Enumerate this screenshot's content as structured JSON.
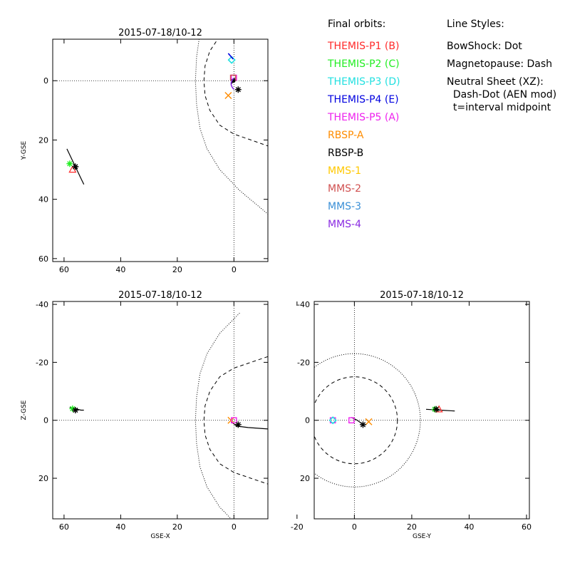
{
  "colors": {
    "THEMIS-P1": "#ff2a2a",
    "THEMIS-P2": "#22ee22",
    "THEMIS-P3": "#22e0e0",
    "THEMIS-P4": "#0000e0",
    "THEMIS-P5": "#ee22ee",
    "RBSP-A": "#ff8c00",
    "RBSP-B": "#000000",
    "MMS-1": "#ffc800",
    "MMS-2": "#d05050",
    "MMS-3": "#3a8fd6",
    "MMS-4": "#8a2be2"
  },
  "legend": {
    "title": "Final orbits:",
    "items": [
      {
        "label": "THEMIS-P1 (B)",
        "key": "THEMIS-P1"
      },
      {
        "label": "THEMIS-P2 (C)",
        "key": "THEMIS-P2"
      },
      {
        "label": "THEMIS-P3 (D)",
        "key": "THEMIS-P3"
      },
      {
        "label": "THEMIS-P4 (E)",
        "key": "THEMIS-P4"
      },
      {
        "label": "THEMIS-P5 (A)",
        "key": "THEMIS-P5"
      },
      {
        "label": "RBSP-A",
        "key": "RBSP-A"
      },
      {
        "label": "RBSP-B",
        "key": "RBSP-B"
      },
      {
        "label": "MMS-1",
        "key": "MMS-1"
      },
      {
        "label": "MMS-2",
        "key": "MMS-2"
      },
      {
        "label": "MMS-3",
        "key": "MMS-3"
      },
      {
        "label": "MMS-4",
        "key": "MMS-4"
      }
    ]
  },
  "line_styles": {
    "title": "Line Styles:",
    "lines": [
      "BowShock: Dot",
      "Magnetopause: Dash",
      "Neutral Sheet (XZ):",
      "  Dash-Dot (AEN mod)",
      "  t=interval midpoint"
    ]
  },
  "chart_data": [
    {
      "type": "scatter",
      "panel": "XY",
      "title": "2015-07-18/10-12",
      "xlabel": "",
      "ylabel": "Y-GSE",
      "xlim": [
        64,
        -12
      ],
      "ylim": [
        -14,
        61
      ],
      "xticks": [
        60,
        40,
        20,
        0
      ],
      "yticks": [
        0,
        20,
        40,
        60
      ],
      "zero_lines": true,
      "bow_shock": [
        [
          13.6,
          0
        ],
        [
          13.2,
          8
        ],
        [
          12,
          16
        ],
        [
          9.5,
          23
        ],
        [
          5,
          30
        ],
        [
          -2,
          37
        ],
        [
          -12,
          45
        ]
      ],
      "bow_shock_neg": [
        [
          13.2,
          -8
        ],
        [
          12,
          -16
        ],
        [
          9.5,
          -23
        ]
      ],
      "magnetopause": [
        [
          10.6,
          0
        ],
        [
          10.2,
          5
        ],
        [
          8.5,
          10
        ],
        [
          5,
          15
        ],
        [
          0,
          18
        ],
        [
          -6,
          20
        ],
        [
          -12,
          22
        ]
      ],
      "magnetopause_neg": [
        [
          10.2,
          -5
        ],
        [
          8.5,
          -10
        ],
        [
          5,
          -15
        ]
      ],
      "tracks": [
        {
          "key": "THEMIS-P2",
          "points": [
            [
              59,
              23
            ],
            [
              56,
              29
            ],
            [
              54,
              33
            ],
            [
              53,
              35
            ]
          ]
        },
        {
          "key": "RBSP-B",
          "points": [
            [
              0.8,
              1
            ],
            [
              0.2,
              0
            ],
            [
              -0.3,
              -1
            ]
          ]
        }
      ],
      "markers": [
        {
          "key": "THEMIS-P1",
          "x": 57,
          "y": 30,
          "symbol": "triangle"
        },
        {
          "key": "THEMIS-P2",
          "x": 58,
          "y": 28,
          "symbol": "star"
        },
        {
          "key": "RBSP-B",
          "x": 56,
          "y": 29,
          "symbol": "star"
        },
        {
          "key": "THEMIS-P3",
          "x": 0.8,
          "y": -7,
          "symbol": "diamond"
        },
        {
          "key": "THEMIS-P4",
          "x": 1,
          "y": -8,
          "symbol": "line"
        },
        {
          "key": "THEMIS-P5",
          "x": 0,
          "y": -1,
          "symbol": "square"
        },
        {
          "key": "MMS-2",
          "x": 0.3,
          "y": -1,
          "symbol": "square"
        },
        {
          "key": "RBSP-A",
          "x": 2,
          "y": 5,
          "symbol": "cross"
        },
        {
          "key": "RBSP-B",
          "x": -1.5,
          "y": 3,
          "symbol": "star"
        },
        {
          "key": "RBSP-B",
          "x": 0.2,
          "y": 0,
          "symbol": "dot"
        },
        {
          "key": "MMS-4",
          "x": 0.5,
          "y": 1,
          "symbol": "arc"
        }
      ]
    },
    {
      "type": "scatter",
      "panel": "XZ",
      "title": "2015-07-18/10-12",
      "xlabel": "GSE-X",
      "ylabel": "Z-GSE",
      "xlim": [
        64,
        -12
      ],
      "ylim": [
        -41,
        34
      ],
      "xticks": [
        60,
        40,
        20,
        0
      ],
      "yticks": [
        -40,
        -20,
        0,
        20
      ],
      "zero_lines": true,
      "bow_shock": [
        [
          13.6,
          0
        ],
        [
          13.2,
          8
        ],
        [
          12,
          16
        ],
        [
          9.5,
          23
        ],
        [
          5,
          30
        ],
        [
          -2,
          37
        ]
      ],
      "bow_shock_neg": [
        [
          13.2,
          -8
        ],
        [
          12,
          -16
        ],
        [
          9.5,
          -23
        ],
        [
          5,
          -30
        ],
        [
          -2,
          -37
        ]
      ],
      "magnetopause": [
        [
          10.6,
          0
        ],
        [
          10.2,
          5
        ],
        [
          8.5,
          10
        ],
        [
          5,
          15
        ],
        [
          0,
          18
        ],
        [
          -6,
          20
        ],
        [
          -12,
          22
        ]
      ],
      "magnetopause_neg": [
        [
          10.2,
          -5
        ],
        [
          8.5,
          -10
        ],
        [
          5,
          -15
        ],
        [
          0,
          -18
        ],
        [
          -6,
          -20
        ],
        [
          -12,
          -22
        ]
      ],
      "tracks": [
        {
          "key": "THEMIS-P2",
          "points": [
            [
              58,
              -4.5
            ],
            [
              56,
              -4
            ],
            [
              54,
              -3.5
            ],
            [
              53,
              -3.5
            ]
          ]
        },
        {
          "key": "RBSP-B",
          "points": [
            [
              1,
              0.5
            ],
            [
              -1,
              2
            ],
            [
              -5,
              2.5
            ],
            [
              -12,
              3
            ]
          ]
        }
      ],
      "markers": [
        {
          "key": "THEMIS-P2",
          "x": 57,
          "y": -4,
          "symbol": "star"
        },
        {
          "key": "RBSP-B",
          "x": 56,
          "y": -3.5,
          "symbol": "star"
        },
        {
          "key": "RBSP-A",
          "x": 1,
          "y": 0,
          "symbol": "cross"
        },
        {
          "key": "THEMIS-P5",
          "x": 0,
          "y": 0,
          "symbol": "square"
        },
        {
          "key": "RBSP-B",
          "x": -1.5,
          "y": 1.5,
          "symbol": "star"
        }
      ]
    },
    {
      "type": "scatter",
      "panel": "YZ",
      "title": "2015-07-18/10-12",
      "xlabel": "GSE-Y",
      "ylabel": "",
      "xlim": [
        -14,
        61
      ],
      "ylim": [
        -41,
        34
      ],
      "xticks": [
        -20,
        0,
        20,
        40,
        60
      ],
      "yticks": [
        -40,
        -20,
        0,
        20
      ],
      "zero_lines": true,
      "circles": [
        {
          "r": 23,
          "style": "dot"
        },
        {
          "r": 15,
          "style": "dash"
        }
      ],
      "tracks": [
        {
          "key": "RBSP-B",
          "points": [
            [
              25,
              -3.8
            ],
            [
              30,
              -3.5
            ],
            [
              35,
              -3.2
            ]
          ]
        },
        {
          "key": "RBSP-B",
          "points": [
            [
              -1,
              -1
            ],
            [
              1,
              0
            ],
            [
              3,
              1.5
            ]
          ]
        }
      ],
      "markers": [
        {
          "key": "THEMIS-P5",
          "x": -7.5,
          "y": 0,
          "symbol": "square"
        },
        {
          "key": "THEMIS-P3",
          "x": -7.5,
          "y": 0,
          "symbol": "diamond"
        },
        {
          "key": "THEMIS-P5",
          "x": -1,
          "y": 0,
          "symbol": "square"
        },
        {
          "key": "RBSP-A",
          "x": 5,
          "y": 0.5,
          "symbol": "cross"
        },
        {
          "key": "RBSP-B",
          "x": 3,
          "y": 1.5,
          "symbol": "star"
        },
        {
          "key": "THEMIS-P2",
          "x": 28,
          "y": -3.8,
          "symbol": "star"
        },
        {
          "key": "THEMIS-P1",
          "x": 29.5,
          "y": -3.8,
          "symbol": "triangle"
        },
        {
          "key": "RBSP-B",
          "x": 28.5,
          "y": -3.8,
          "symbol": "star"
        }
      ]
    }
  ]
}
